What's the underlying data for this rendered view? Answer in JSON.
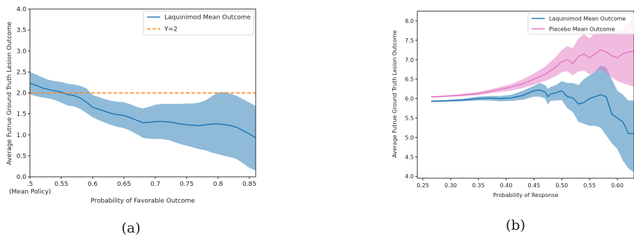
{
  "chart_data": [
    {
      "type": "line",
      "panel_caption": "(a)",
      "xlabel": "Probability of Favorable Outcome",
      "ylabel": "Average Futrue Ground Truth Lesion Outcome",
      "xlim": [
        0.5,
        0.86
      ],
      "ylim": [
        0.0,
        4.0
      ],
      "xtick_labels": [
        ".5\n(Mean Policy)",
        "0.55",
        "0.6",
        "0.65",
        "0.7",
        "0.75",
        "0.8",
        "0.85"
      ],
      "xtick_values": [
        0.5,
        0.55,
        0.6,
        0.65,
        0.7,
        0.75,
        0.8,
        0.85
      ],
      "ytick_values": [
        0.0,
        0.5,
        1.0,
        1.5,
        2.0,
        2.5,
        3.0,
        3.5,
        4.0
      ],
      "ytick_labels": [
        "0.0",
        "0.5",
        "1.0",
        "1.5",
        "2.0",
        "2.5",
        "3.0",
        "3.5",
        "4.0"
      ],
      "legend_position": "top-right",
      "series": [
        {
          "name": "Laquinimod Mean Outcome",
          "color": "#1f77b4",
          "x": [
            0.5,
            0.51,
            0.52,
            0.53,
            0.54,
            0.55,
            0.56,
            0.57,
            0.58,
            0.59,
            0.6,
            0.61,
            0.62,
            0.63,
            0.64,
            0.65,
            0.66,
            0.67,
            0.68,
            0.69,
            0.7,
            0.71,
            0.72,
            0.73,
            0.74,
            0.75,
            0.76,
            0.77,
            0.78,
            0.79,
            0.8,
            0.81,
            0.82,
            0.83,
            0.84,
            0.85,
            0.86
          ],
          "y": [
            2.23,
            2.18,
            2.12,
            2.08,
            2.05,
            2.02,
            1.96,
            1.94,
            1.88,
            1.78,
            1.66,
            1.61,
            1.56,
            1.51,
            1.48,
            1.46,
            1.41,
            1.35,
            1.29,
            1.3,
            1.32,
            1.32,
            1.31,
            1.29,
            1.26,
            1.24,
            1.23,
            1.22,
            1.24,
            1.26,
            1.26,
            1.25,
            1.22,
            1.18,
            1.1,
            1.02,
            0.93
          ],
          "lower": [
            1.97,
            1.92,
            1.89,
            1.87,
            1.83,
            1.77,
            1.7,
            1.68,
            1.62,
            1.52,
            1.42,
            1.35,
            1.29,
            1.23,
            1.19,
            1.16,
            1.1,
            1.02,
            0.93,
            0.91,
            0.9,
            0.9,
            0.88,
            0.83,
            0.78,
            0.74,
            0.7,
            0.66,
            0.63,
            0.58,
            0.54,
            0.5,
            0.47,
            0.42,
            0.32,
            0.21,
            0.15
          ],
          "upper": [
            2.5,
            2.44,
            2.37,
            2.31,
            2.28,
            2.26,
            2.22,
            2.2,
            2.17,
            2.11,
            1.95,
            1.9,
            1.85,
            1.81,
            1.79,
            1.78,
            1.73,
            1.67,
            1.63,
            1.67,
            1.72,
            1.74,
            1.74,
            1.74,
            1.74,
            1.75,
            1.75,
            1.77,
            1.82,
            1.92,
            2.01,
            2.02,
            1.98,
            1.93,
            1.85,
            1.77,
            1.69
          ]
        },
        {
          "name": "Y=2",
          "color": "#ff7f0e",
          "style": "dashed",
          "y_constant": 2.0
        }
      ]
    },
    {
      "type": "line",
      "panel_caption": "(b)",
      "xlabel": "Probability of Response",
      "ylabel": "Average Futrue Ground Truth Lesion Outcome",
      "xlim": [
        0.24,
        0.63
      ],
      "ylim": [
        3.95,
        8.25
      ],
      "xtick_values": [
        0.25,
        0.3,
        0.35,
        0.4,
        0.45,
        0.5,
        0.55,
        0.6
      ],
      "xtick_labels": [
        "0.25",
        "0.30",
        "0.35",
        "0.40",
        "0.45",
        "0.50",
        "0.55",
        "0.60"
      ],
      "ytick_values": [
        4.0,
        4.5,
        5.0,
        5.5,
        6.0,
        6.5,
        7.0,
        7.5,
        8.0
      ],
      "ytick_labels": [
        "4.0",
        "4.5",
        "5.0",
        "5.5",
        "6.0",
        "6.5",
        "7.0",
        "7.5",
        "8.0"
      ],
      "legend_position": "top-right",
      "series": [
        {
          "name": "Laquinimod Mean Outcome",
          "color": "#1f77b4",
          "x": [
            0.265,
            0.29,
            0.32,
            0.35,
            0.37,
            0.39,
            0.41,
            0.43,
            0.45,
            0.46,
            0.47,
            0.475,
            0.48,
            0.49,
            0.5,
            0.51,
            0.52,
            0.53,
            0.54,
            0.55,
            0.56,
            0.57,
            0.58,
            0.59,
            0.6,
            0.61,
            0.62,
            0.63
          ],
          "y": [
            5.93,
            5.94,
            5.96,
            6.0,
            6.01,
            6.0,
            6.02,
            6.08,
            6.2,
            6.22,
            6.17,
            6.05,
            6.12,
            6.15,
            6.2,
            6.05,
            6.02,
            5.86,
            5.9,
            6.0,
            6.05,
            6.1,
            6.05,
            5.6,
            5.5,
            5.4,
            5.1,
            5.1
          ],
          "lower": [
            5.91,
            5.92,
            5.93,
            5.95,
            5.95,
            5.93,
            5.94,
            5.97,
            6.05,
            6.05,
            6.0,
            5.85,
            5.94,
            5.95,
            5.96,
            5.75,
            5.65,
            5.4,
            5.35,
            5.3,
            5.3,
            5.25,
            5.05,
            4.85,
            4.7,
            4.4,
            4.2,
            4.1
          ],
          "upper": [
            5.95,
            5.96,
            5.99,
            6.05,
            6.07,
            6.07,
            6.1,
            6.2,
            6.33,
            6.4,
            6.35,
            6.25,
            6.3,
            6.35,
            6.45,
            6.4,
            6.4,
            6.35,
            6.5,
            6.6,
            6.7,
            6.85,
            6.8,
            6.5,
            6.2,
            6.1,
            5.95,
            5.95
          ]
        },
        {
          "name": "Placebo Mean Outcome",
          "color": "#e377c2",
          "x": [
            0.265,
            0.29,
            0.32,
            0.35,
            0.37,
            0.39,
            0.41,
            0.43,
            0.45,
            0.47,
            0.49,
            0.5,
            0.51,
            0.52,
            0.53,
            0.54,
            0.55,
            0.56,
            0.57,
            0.58,
            0.59,
            0.6,
            0.61,
            0.62,
            0.63
          ],
          "y": [
            6.04,
            6.06,
            6.09,
            6.13,
            6.18,
            6.24,
            6.3,
            6.38,
            6.5,
            6.62,
            6.82,
            6.95,
            7.0,
            6.9,
            7.08,
            7.15,
            7.05,
            7.15,
            7.25,
            7.2,
            7.1,
            7.05,
            7.15,
            7.2,
            7.22
          ],
          "lower": [
            6.02,
            6.04,
            6.06,
            6.09,
            6.13,
            6.17,
            6.21,
            6.27,
            6.36,
            6.45,
            6.58,
            6.68,
            6.7,
            6.6,
            6.7,
            6.72,
            6.62,
            6.7,
            6.75,
            6.65,
            6.55,
            6.45,
            6.4,
            6.35,
            6.3
          ],
          "upper": [
            6.06,
            6.08,
            6.12,
            6.17,
            6.23,
            6.3,
            6.38,
            6.5,
            6.65,
            6.82,
            7.08,
            7.25,
            7.35,
            7.3,
            7.55,
            7.65,
            7.55,
            7.7,
            7.85,
            7.8,
            7.75,
            7.75,
            7.8,
            7.95,
            8.1
          ]
        }
      ]
    }
  ]
}
